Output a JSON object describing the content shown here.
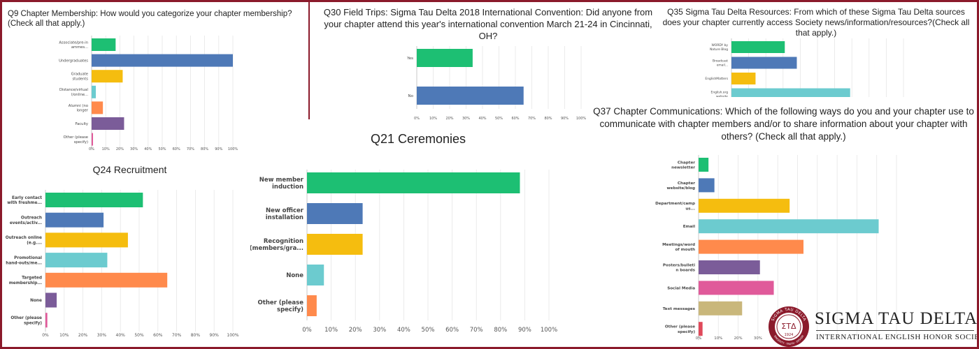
{
  "chart_data": [
    {
      "id": "q9",
      "type": "bar",
      "orientation": "horizontal",
      "title": "Q9 Chapter Membership: How would you categorize your chapter membership?(Check all that apply.)",
      "categories": [
        "Associate/pre-in ammes...",
        "Undergraduates",
        "Graduate students",
        "Distance/virtual l/online...",
        "Alumni (no longer stude...",
        "Faculty",
        "Other (please specify)"
      ],
      "values": [
        17,
        100,
        22,
        3,
        8,
        23,
        1
      ],
      "colors": [
        "#1dbf73",
        "#4e79b7",
        "#f5bd0f",
        "#6ccbcf",
        "#ff8a4c",
        "#7b5c99",
        "#e05a9a"
      ],
      "xlim": [
        0,
        100
      ],
      "xticks": [
        "0%",
        "10%",
        "20%",
        "30%",
        "40%",
        "50%",
        "60%",
        "70%",
        "80%",
        "90%",
        "100%"
      ]
    },
    {
      "id": "q30",
      "type": "bar",
      "orientation": "horizontal",
      "title": "Q30 Field Trips: Sigma Tau Delta 2018 International Convention: Did anyone from your chapter attend this year's international convention March 21-24 in Cincinnati, OH?",
      "categories": [
        "Yes",
        "No"
      ],
      "values": [
        34,
        65
      ],
      "colors": [
        "#1dbf73",
        "#4e79b7"
      ],
      "xlim": [
        0,
        100
      ],
      "xticks": [
        "0%",
        "10%",
        "20%",
        "30%",
        "40%",
        "50%",
        "60%",
        "70%",
        "80%",
        "90%",
        "100%"
      ]
    },
    {
      "id": "q35",
      "type": "bar",
      "orientation": "horizontal",
      "title": "Q35 Sigma Tau Delta Resources: From which of these Sigma Tau Delta sources does your chapter currently access Society news/information/resources?(Check all that apply.)",
      "categories": [
        "WORDY by Nature Blog",
        "Broadcast email...",
        "EnglishMatters",
        "English.org website"
      ],
      "values": [
        31,
        38,
        14,
        69
      ],
      "colors": [
        "#1dbf73",
        "#4e79b7",
        "#f5bd0f",
        "#6ccbcf"
      ],
      "xlim": [
        0,
        100
      ]
    },
    {
      "id": "q37",
      "type": "bar",
      "orientation": "horizontal",
      "title": "Q37 Chapter Communications: Which of the following ways do you and your chapter use to communicate with chapter members and/or to share information about your chapter with others? (Check all that apply.)",
      "categories": [
        "Chapter newsletter",
        "Chapter website/blog",
        "Department/camp us...",
        "Email",
        "Meetings/word of mouth",
        "Posters/bulleti n boards",
        "Social Media",
        "Text messages",
        "Other (please specify)"
      ],
      "values": [
        5,
        8,
        46,
        91,
        53,
        31,
        38,
        22,
        2
      ],
      "colors": [
        "#1dbf73",
        "#4e79b7",
        "#f5bd0f",
        "#6ccbcf",
        "#ff8a4c",
        "#7b5c99",
        "#e05a9a",
        "#c9b77b",
        "#e0495a"
      ],
      "xlim": [
        0,
        100
      ],
      "xticks": [
        "0%",
        "10%",
        "20%",
        "30%"
      ]
    },
    {
      "id": "q24",
      "type": "bar",
      "orientation": "horizontal",
      "title": "Q24 Recruitment",
      "categories": [
        "Early contact with freshme...",
        "Outreach events/activ...",
        "Outreach online (e.g....",
        "Promotional hand-outs/me...",
        "Targeted membership...",
        "None",
        "Other (please specify)"
      ],
      "values": [
        52,
        31,
        44,
        33,
        65,
        6,
        1
      ],
      "colors": [
        "#1dbf73",
        "#4e79b7",
        "#f5bd0f",
        "#6ccbcf",
        "#ff8a4c",
        "#7b5c99",
        "#e05a9a"
      ],
      "xlim": [
        0,
        100
      ],
      "xticks": [
        "0%",
        "10%",
        "20%",
        "30%",
        "40%",
        "50%",
        "60%",
        "70%",
        "80%",
        "90%",
        "100%"
      ]
    },
    {
      "id": "q21",
      "type": "bar",
      "orientation": "horizontal",
      "title": "Q21 Ceremonies",
      "categories": [
        "New member induction",
        "New officer installation",
        "Recognition (members/gra...",
        "None",
        "Other (please specify)"
      ],
      "values": [
        88,
        23,
        23,
        7,
        4
      ],
      "colors": [
        "#1dbf73",
        "#4e79b7",
        "#f5bd0f",
        "#6ccbcf",
        "#ff8a4c"
      ],
      "xlim": [
        0,
        100
      ],
      "xticks": [
        "0%",
        "10%",
        "20%",
        "30%",
        "40%",
        "50%",
        "60%",
        "70%",
        "80%",
        "90%",
        "100%"
      ]
    }
  ],
  "logo": {
    "name": "SIGMA TAU DELTA",
    "tagline": "INTERNATIONAL ENGLISH HONOR SOCIETY",
    "seal_letters": "ΣΤΔ",
    "seal_year": "1924",
    "seal_ring_text": "SIGMA TAU DELTA",
    "seal_ring_bottom": "SINCERITY · TRUTH · DESIGN",
    "brand_color": "#8b1a2b"
  }
}
